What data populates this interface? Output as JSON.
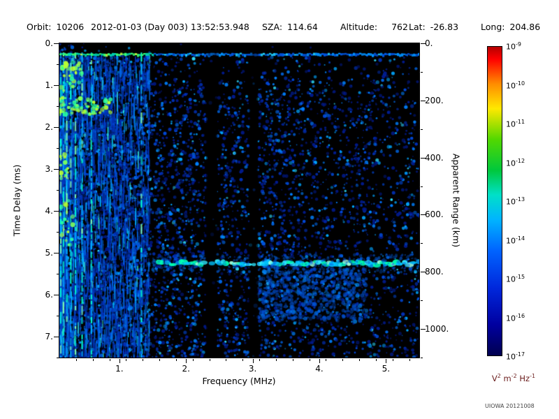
{
  "header": {
    "items": [
      {
        "label": "Orbit:",
        "value": "10206"
      },
      {
        "label": "",
        "value": "2012-01-03 (Day 003) 13:52:53.948"
      },
      {
        "label": "SZA:",
        "value": "114.64"
      },
      {
        "label": "Altitude:",
        "value": "762"
      },
      {
        "label": "Lat:",
        "value": "-26.83"
      },
      {
        "label": "Long:",
        "value": "204.86"
      }
    ]
  },
  "credit": "UIOWA 20121008",
  "chart_data": {
    "type": "heatmap",
    "description": "Radar sounder ionogram: received spectral density versus frequency and time delay, rainbow log color scale on black background",
    "xlabel": "Frequency (MHz)",
    "ylabel_left": "Time Delay (ms)",
    "ylabel_right": "Apparent Range (km)",
    "xlim": [
      0.1,
      5.5
    ],
    "x_ticks": [
      1,
      2,
      3,
      4,
      5
    ],
    "x_tick_labels": [
      "1.",
      "2.",
      "3.",
      "4.",
      "5."
    ],
    "x_minor_step": 0.25,
    "ylim_left": [
      0,
      7.5
    ],
    "y_ticks_left": [
      0,
      1,
      2,
      3,
      4,
      5,
      6,
      7
    ],
    "y_tick_labels_left": [
      "0.",
      "1.",
      "2.",
      "3.",
      "4.",
      "5.",
      "6.",
      "7."
    ],
    "y_minor_step_left": 0.5,
    "ylim_right": [
      0,
      1100
    ],
    "y_ticks_right": [
      0,
      200,
      400,
      600,
      800,
      1000
    ],
    "y_tick_labels_right": [
      "0.",
      "200.",
      "400.",
      "600.",
      "800.",
      "1000."
    ],
    "y_minor_step_right": 100,
    "background": "#000000",
    "noise_seed": 20121008,
    "colorbar": {
      "scale": "log",
      "tick_base": "10",
      "tick_exponents": [
        -9,
        -10,
        -11,
        -12,
        -13,
        -14,
        -15,
        -16,
        -17
      ],
      "unit_segments": [
        [
          "V",
          false
        ],
        [
          "2",
          true
        ],
        [
          " m",
          false
        ],
        [
          "-2",
          true
        ],
        [
          " Hz",
          false
        ],
        [
          "-1",
          true
        ]
      ],
      "label_color": "#6b1d1d",
      "stops": [
        {
          "p": 0.0,
          "c": "#b40000"
        },
        {
          "p": 0.04,
          "c": "#ff0000"
        },
        {
          "p": 0.12,
          "c": "#ff8c00"
        },
        {
          "p": 0.2,
          "c": "#ffe800"
        },
        {
          "p": 0.3,
          "c": "#52d800"
        },
        {
          "p": 0.4,
          "c": "#00c83c"
        },
        {
          "p": 0.48,
          "c": "#00e0c8"
        },
        {
          "p": 0.56,
          "c": "#00b4ff"
        },
        {
          "p": 0.66,
          "c": "#0064ff"
        },
        {
          "p": 0.78,
          "c": "#0028dc"
        },
        {
          "p": 0.9,
          "c": "#0000a0"
        },
        {
          "p": 1.0,
          "c": "#000050"
        }
      ]
    },
    "features": [
      {
        "name": "ionosphere-echo-line",
        "type": "hband",
        "t_ms": 0.25,
        "f_range": [
          0.1,
          5.5
        ]
      },
      {
        "name": "surface-reflection-band",
        "type": "hband",
        "t_ms": 5.25,
        "f_range": [
          1.55,
          5.5
        ]
      },
      {
        "name": "low-frequency-striations",
        "type": "vstripes",
        "f_range": [
          0.1,
          1.45
        ],
        "t_range": [
          0.25,
          7.5
        ]
      },
      {
        "name": "bright-columns",
        "type": "bright-columns",
        "freqs": [
          0.12,
          0.16,
          0.21,
          0.27,
          0.34,
          0.44,
          0.58,
          1.33
        ]
      },
      {
        "name": "plasma-oscillation-clusters",
        "type": "clusters",
        "clusters": [
          {
            "f": 0.45,
            "t": 1.5,
            "rf": 0.42,
            "rt": 0.2,
            "n": 80
          },
          {
            "f": 0.28,
            "t": 0.8,
            "rf": 0.18,
            "rt": 0.35,
            "n": 30
          },
          {
            "f": 0.16,
            "t": 2.95,
            "rf": 0.07,
            "rt": 0.3,
            "n": 20
          },
          {
            "f": 0.2,
            "t": 4.3,
            "rf": 0.1,
            "rt": 0.6,
            "n": 22
          }
        ]
      },
      {
        "name": "interference-gap-1",
        "type": "gap",
        "f_range": [
          2.3,
          2.47
        ]
      },
      {
        "name": "interference-gap-2",
        "type": "gap",
        "f_range": [
          2.95,
          3.08
        ]
      },
      {
        "name": "diffuse-subsurface-scatter",
        "type": "cloud",
        "f_range": [
          3.0,
          4.7
        ],
        "t_range": [
          5.35,
          6.6
        ],
        "n": 700
      }
    ]
  }
}
